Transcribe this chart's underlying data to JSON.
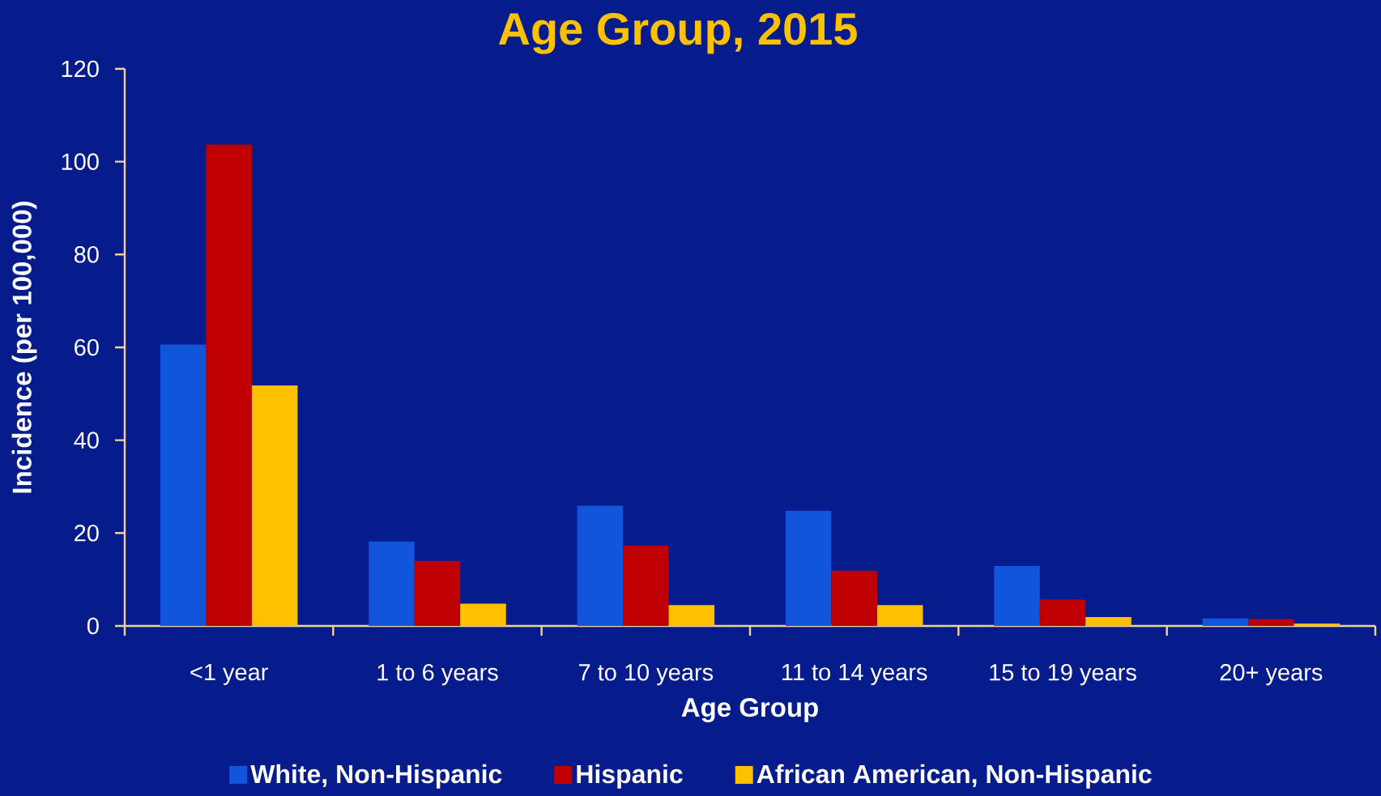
{
  "chart_data": {
    "type": "bar",
    "title": "Age Group, 2015",
    "xlabel": "Age Group",
    "ylabel": "Incidence (per 100,000)",
    "categories": [
      "<1 year",
      "1 to 6 years",
      "7 to 10 years",
      "11 to 14 years",
      "15 to 19 years",
      "20+ years"
    ],
    "series": [
      {
        "name": "White, Non-Hispanic",
        "color": "#1155dd",
        "values": [
          60.6,
          18.2,
          25.9,
          24.8,
          12.9,
          1.6
        ]
      },
      {
        "name": "Hispanic",
        "color": "#c00000",
        "values": [
          103.7,
          14.0,
          17.3,
          11.9,
          5.7,
          1.5
        ]
      },
      {
        "name": "African American, Non-Hispanic",
        "color": "#ffc000",
        "values": [
          51.8,
          4.8,
          4.5,
          4.5,
          1.9,
          0.5
        ]
      }
    ],
    "ylim": [
      0,
      120
    ],
    "yticks": [
      0,
      20,
      40,
      60,
      80,
      100,
      120
    ],
    "legend": "bottom"
  }
}
